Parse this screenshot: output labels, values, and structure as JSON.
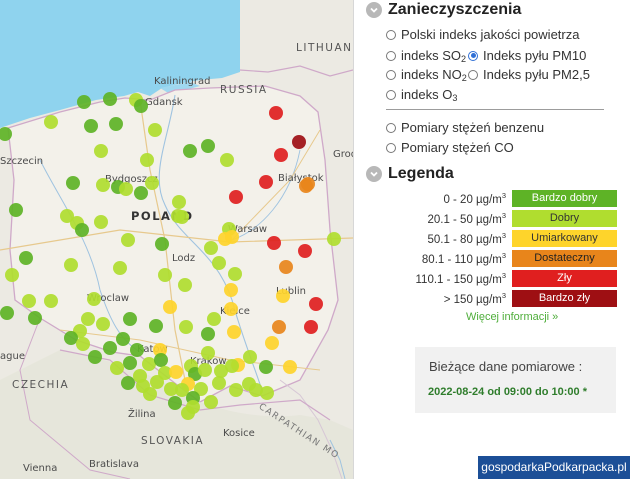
{
  "map": {
    "labels": {
      "lithuania": "LITHUAN",
      "russia": "RUSSIA",
      "kaliningrad": "Kaliningrad",
      "gdansk": "Gdansk",
      "szczecin": "Szczecin",
      "bydgoszcz": "Bydgoszcz",
      "bialystok": "Białystok",
      "grodno": "Grod",
      "poland": "POLAND",
      "warsaw": "Warsaw",
      "lodz": "Lodz",
      "lublin": "Lublin",
      "wroclaw": "Wroclaw",
      "kielce": "Kielce",
      "katowice": "Katow",
      "krakow": "Krakow",
      "prague": "ague",
      "czechia": "CZECHIA",
      "slovakia": "SLOVAKIA",
      "kosice": "Kosice",
      "carpathian": "CARPATHIAN MO",
      "bratislava": "Bratislava",
      "vienna": "Vienna",
      "zilina": "Žilina"
    }
  },
  "panel": {
    "pollution": {
      "title": "Zanieczyszczenia",
      "options": {
        "polish_index": "Polski indeks jakości powietrza",
        "so2_prefix": "indeks SO",
        "so2_sub": "2",
        "pm10": "Indeks pyłu PM10",
        "no2_prefix": "indeks NO",
        "no2_sub": "2",
        "pm25": "Indeks pyłu PM2,5",
        "o3_prefix": "indeks O",
        "o3_sub": "3",
        "benzene": "Pomiary stężeń benzenu",
        "co": "Pomiary stężeń CO"
      },
      "selected": "pm10"
    },
    "legend": {
      "title": "Legenda",
      "unit_prefix": "µg/m",
      "unit_sup": "3",
      "rows": [
        {
          "range": "0 - 20 ",
          "label": "Bardzo dobry",
          "color": "#5eb326",
          "text_color": "#ffffff"
        },
        {
          "range": "20.1 - 50 ",
          "label": "Dobry",
          "color": "#b0dd2f",
          "text_color": "#333333"
        },
        {
          "range": "50.1 - 80 ",
          "label": "Umiarkowany",
          "color": "#fed42b",
          "text_color": "#333333"
        },
        {
          "range": "80.1 - 110 ",
          "label": "Dostateczny",
          "color": "#e8851b",
          "text_color": "#222222"
        },
        {
          "range": "110.1 - 150 ",
          "label": "Zły",
          "color": "#e01f1f",
          "text_color": "#ffffff"
        },
        {
          "range": "> 150 ",
          "label": "Bardzo zły",
          "color": "#9e0f13",
          "text_color": "#ffffff"
        }
      ],
      "more_link": "Więcej informacji »"
    },
    "current": {
      "title": "Bieżące dane pomiarowe :",
      "date": "2022-08-24 od 09:00 do 10:00 *"
    }
  },
  "watermark": "gospodarkaPodkarpacka.pl"
}
